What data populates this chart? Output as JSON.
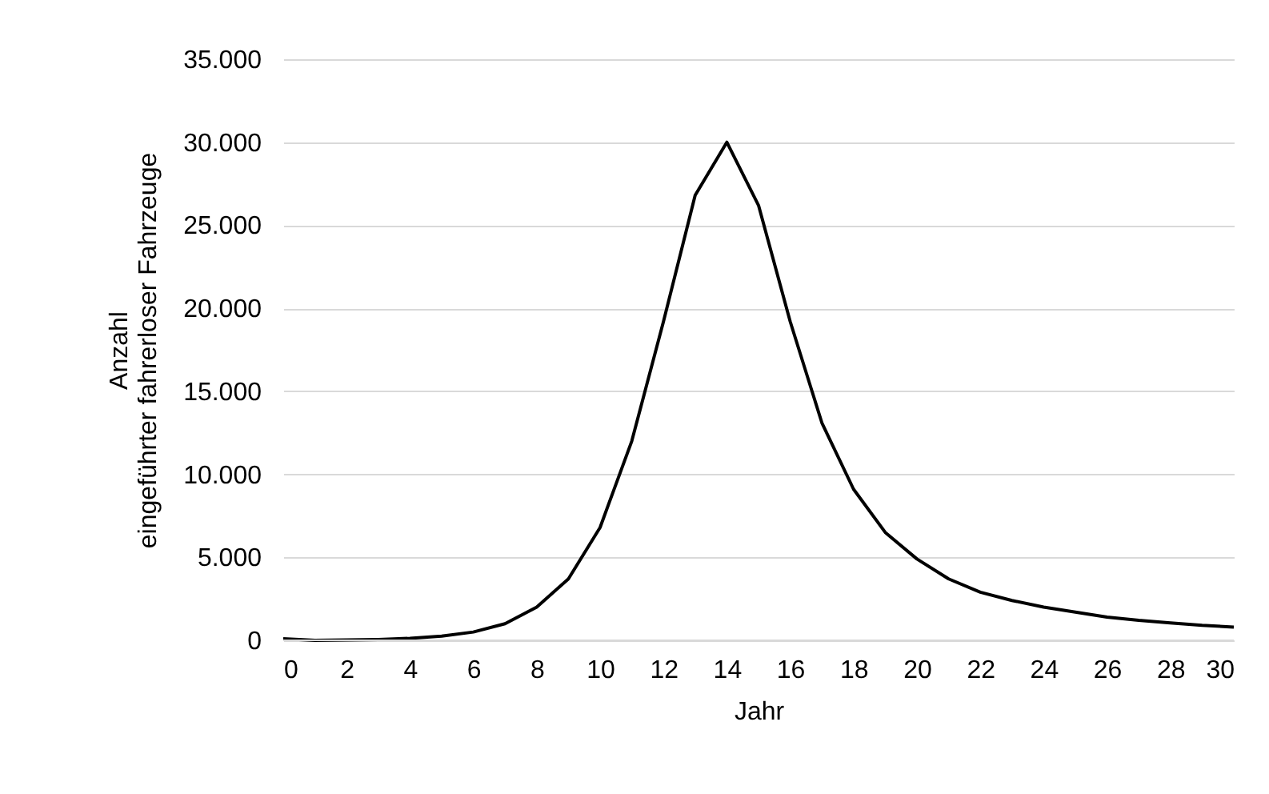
{
  "chart_data": {
    "type": "line",
    "xlabel": "Jahr",
    "ylabel": "Anzahl\neingeführter fahrerloser Fahrzeuge",
    "x": [
      0,
      1,
      2,
      3,
      4,
      5,
      6,
      7,
      8,
      9,
      10,
      11,
      12,
      13,
      14,
      15,
      16,
      17,
      18,
      19,
      20,
      21,
      22,
      23,
      24,
      25,
      26,
      27,
      28,
      29,
      30
    ],
    "series": [
      {
        "color": "#000000",
        "values": [
          100,
          0,
          20,
          50,
          120,
          250,
          500,
          1000,
          2000,
          3700,
          6800,
          12000,
          19200,
          26800,
          30000,
          26200,
          19200,
          13100,
          9100,
          6500,
          4900,
          3700,
          2900,
          2400,
          2000,
          1700,
          1400,
          1200,
          1050,
          900,
          800
        ]
      }
    ],
    "xlim": [
      0,
      30
    ],
    "xticks": [
      0,
      2,
      4,
      6,
      8,
      10,
      12,
      14,
      16,
      18,
      20,
      22,
      24,
      26,
      28,
      30
    ],
    "ylim": [
      0,
      35000
    ],
    "yticks": [
      {
        "value": 0,
        "label": "0"
      },
      {
        "value": 5000,
        "label": "5.000"
      },
      {
        "value": 10000,
        "label": "10.000"
      },
      {
        "value": 15000,
        "label": "15.000"
      },
      {
        "value": 20000,
        "label": "20.000"
      },
      {
        "value": 25000,
        "label": "25.000"
      },
      {
        "value": 30000,
        "label": "30.000"
      },
      {
        "value": 35000,
        "label": "35.000"
      }
    ],
    "grid": "y",
    "legend": false,
    "marker": "none",
    "line_style": "solid"
  }
}
